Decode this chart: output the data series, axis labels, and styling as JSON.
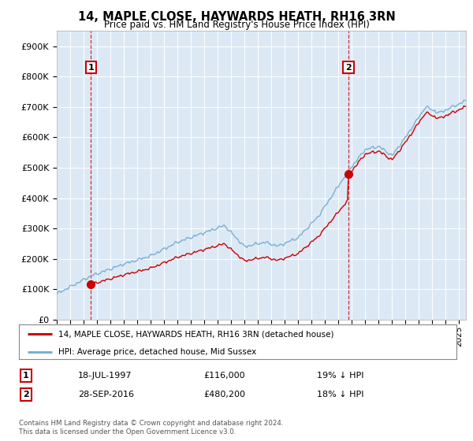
{
  "title": "14, MAPLE CLOSE, HAYWARDS HEATH, RH16 3RN",
  "subtitle": "Price paid vs. HM Land Registry's House Price Index (HPI)",
  "legend_line1": "14, MAPLE CLOSE, HAYWARDS HEATH, RH16 3RN (detached house)",
  "legend_line2": "HPI: Average price, detached house, Mid Sussex",
  "marker1_date": "18-JUL-1997",
  "marker1_price": 116000,
  "marker1_note": "19% ↓ HPI",
  "marker2_date": "28-SEP-2016",
  "marker2_price": 480200,
  "marker2_note": "18% ↓ HPI",
  "footer1": "Contains HM Land Registry data © Crown copyright and database right 2024.",
  "footer2": "This data is licensed under the Open Government Licence v3.0.",
  "hpi_color": "#7bafd4",
  "price_color": "#cc0000",
  "marker_color": "#cc0000",
  "grid_color": "#cccccc",
  "chart_bg": "#dce9f5",
  "background_color": "#ffffff",
  "ylim": [
    0,
    950000
  ],
  "yticks": [
    0,
    100000,
    200000,
    300000,
    400000,
    500000,
    600000,
    700000,
    800000,
    900000
  ],
  "ytick_labels": [
    "£0",
    "£100K",
    "£200K",
    "£300K",
    "£400K",
    "£500K",
    "£600K",
    "£700K",
    "£800K",
    "£900K"
  ],
  "xlim_start": 1995.0,
  "xlim_end": 2025.5,
  "sale1_year_float": 1997.542,
  "sale1_price": 116000,
  "sale2_year_float": 2016.75,
  "sale2_price": 480200
}
